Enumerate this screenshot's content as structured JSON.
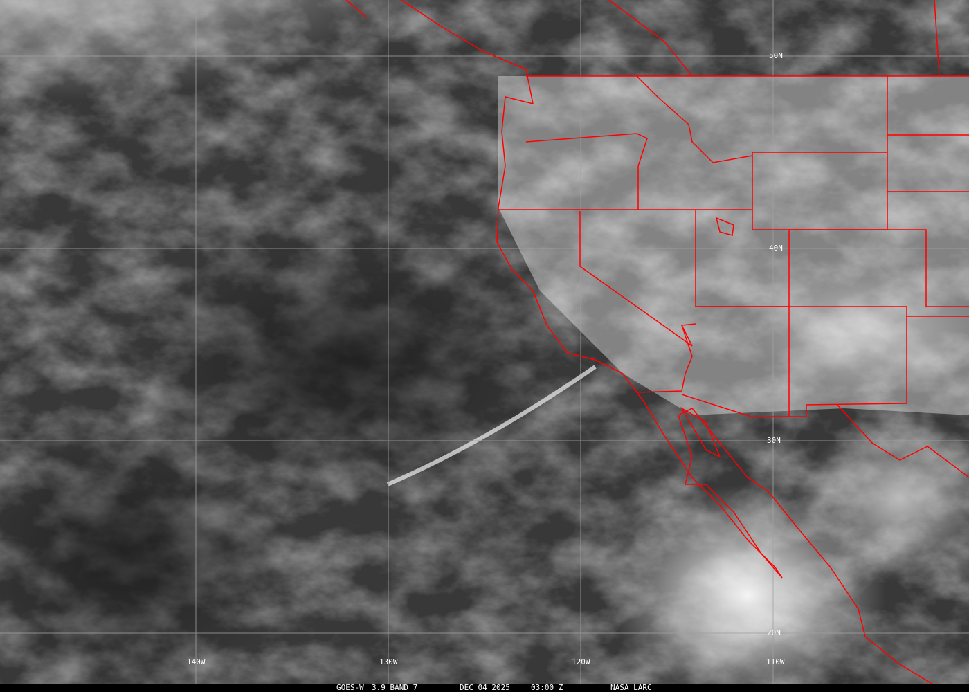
{
  "image": {
    "satellite": "GOES-W",
    "channel": "3.9 BAND 7",
    "date": "DEC 04 2025",
    "time": "03:00 Z",
    "source": "NASA LARC",
    "overlay_color": "#ff0000",
    "grid_color": "#a0a0a0"
  },
  "latitude_labels": [
    "50N",
    "40N",
    "30N",
    "20N"
  ],
  "longitude_labels": [
    "140W",
    "130W",
    "120W",
    "110W"
  ]
}
